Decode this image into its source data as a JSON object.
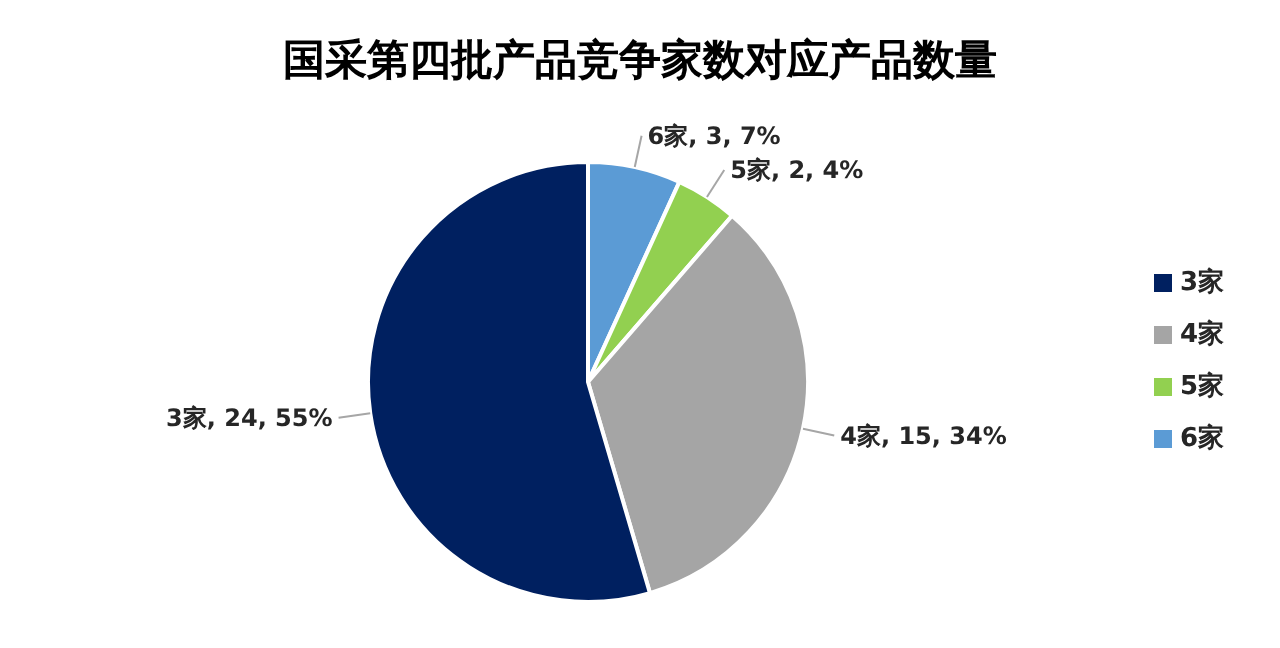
{
  "chart_data": {
    "type": "pie",
    "title": "国采第四批产品竞争家数对应产品数量",
    "categories": [
      "6家",
      "5家",
      "4家",
      "3家"
    ],
    "values": [
      3,
      2,
      15,
      24
    ],
    "colors": [
      "#5b9bd5",
      "#92d050",
      "#a5a5a5",
      "#002060"
    ],
    "value_labels": [
      "6家, 3, 7%",
      "5家, 2, 4%",
      "4家, 15, 34%",
      "3家, 24, 55%"
    ],
    "legend": "right"
  }
}
